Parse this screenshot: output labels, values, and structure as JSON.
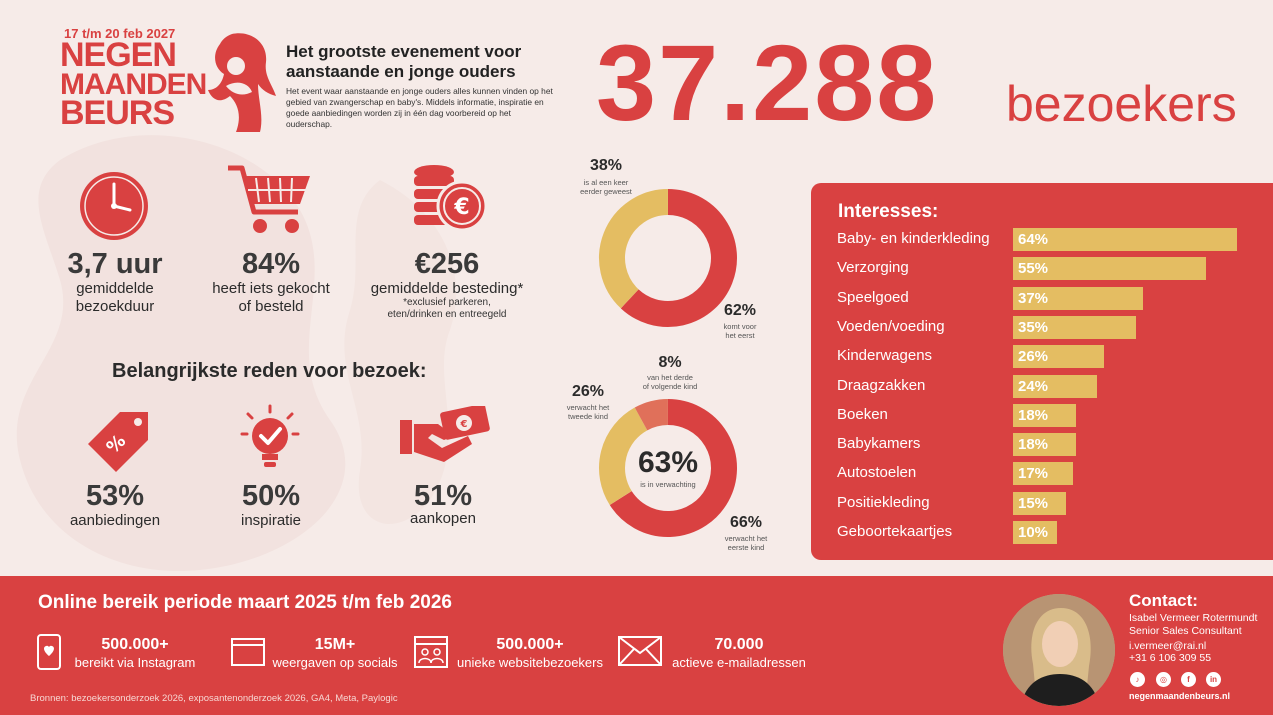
{
  "logo": {
    "date": "17 t/m 20 feb 2027",
    "line1": "NEGEN",
    "line2": "MAANDEN",
    "line3": "BEURS"
  },
  "headline": "Het grootste evenement voor aanstaande en jonge ouders",
  "intro": "Het event waar aanstaande en jonge ouders alles kunnen vinden op het gebied van zwangerschap en baby's. Middels informatie, inspiratie en goede aanbiedingen worden zij in één dag voorbereid op het ouderschap.",
  "visitors": {
    "value": "37.288",
    "label": "bezoekers"
  },
  "stats": [
    {
      "icon": "clock-icon",
      "value": "3,7 uur",
      "label1": "gemiddelde",
      "label2": "bezoekduur"
    },
    {
      "icon": "shopping-cart-icon",
      "value": "84%",
      "label1": "heeft iets gekocht",
      "label2": "of besteld"
    },
    {
      "icon": "coins-euro-icon",
      "value": "€256",
      "label1": "gemiddelde besteding*",
      "note1": "*exclusief parkeren,",
      "note2": "eten/drinken en entreegeld"
    }
  ],
  "reasons": {
    "title": "Belangrijkste reden voor bezoek:",
    "items": [
      {
        "icon": "price-tag-icon",
        "value": "53%",
        "label": "aanbiedingen"
      },
      {
        "icon": "lightbulb-check-icon",
        "value": "50%",
        "label": "inspiratie"
      },
      {
        "icon": "hand-money-icon",
        "value": "51%",
        "label": "aankopen"
      }
    ]
  },
  "donut1": {
    "a": {
      "value": "38%",
      "l1": "is al een keer",
      "l2": "eerder geweest",
      "fraction": 0.38
    },
    "b": {
      "value": "62%",
      "l1": "komt voor",
      "l2": "het eerst",
      "fraction": 0.62
    }
  },
  "donut2": {
    "center": {
      "value": "63%",
      "label": "is in verwachting"
    },
    "a": {
      "value": "8%",
      "l1": "van het derde",
      "l2": "of volgende kind",
      "fraction": 0.08
    },
    "b": {
      "value": "26%",
      "l1": "verwacht het",
      "l2": "tweede kind",
      "fraction": 0.26
    },
    "c": {
      "value": "66%",
      "l1": "verwacht het",
      "l2": "eerste kind",
      "fraction": 0.66
    }
  },
  "interests": {
    "title": "Interesses:",
    "items": [
      {
        "label": "Baby- en kinderkleding",
        "value": "64%",
        "pct": 64
      },
      {
        "label": "Verzorging",
        "value": "55%",
        "pct": 55
      },
      {
        "label": "Speelgoed",
        "value": "37%",
        "pct": 37
      },
      {
        "label": "Voeden/voeding",
        "value": "35%",
        "pct": 35
      },
      {
        "label": "Kinderwagens",
        "value": "26%",
        "pct": 26
      },
      {
        "label": "Draagzakken",
        "value": "24%",
        "pct": 24
      },
      {
        "label": "Boeken",
        "value": "18%",
        "pct": 18
      },
      {
        "label": "Babykamers",
        "value": "18%",
        "pct": 18
      },
      {
        "label": "Autostoelen",
        "value": "17%",
        "pct": 17
      },
      {
        "label": "Positiekleding",
        "value": "15%",
        "pct": 15
      },
      {
        "label": "Geboortekaartjes",
        "value": "10%",
        "pct": 10
      }
    ]
  },
  "online": {
    "title": "Online bereik periode maart 2025 t/m feb 2026",
    "items": [
      {
        "icon": "phone-heart-icon",
        "value": "500.000+",
        "label": "bereikt via Instagram"
      },
      {
        "icon": "browser-window-icon",
        "value": "15M+",
        "label": "weergaven op socials"
      },
      {
        "icon": "website-users-icon",
        "value": "500.000+",
        "label": "unieke websitebezoekers"
      },
      {
        "icon": "envelope-icon",
        "value": "70.000",
        "label": "actieve e-mailadressen"
      }
    ]
  },
  "sources": "Bronnen: bezoekersonderzoek 2026, exposantenonderzoek 2026, GA4, Meta, Paylogic",
  "contact": {
    "title": "Contact:",
    "name": "Isabel Vermeer Rotermundt",
    "role": "Senior Sales Consultant",
    "email": "i.vermeer@rai.nl",
    "phone": "+31 6 106 309 55",
    "site": "negenmaandenbeurs.nl",
    "socials": [
      "tiktok-icon",
      "instagram-icon",
      "facebook-icon",
      "linkedin-icon"
    ]
  },
  "colors": {
    "red": "#d94141",
    "gold": "#e4bd62",
    "salmon": "#e0705a",
    "background": "#f6ebe8"
  }
}
